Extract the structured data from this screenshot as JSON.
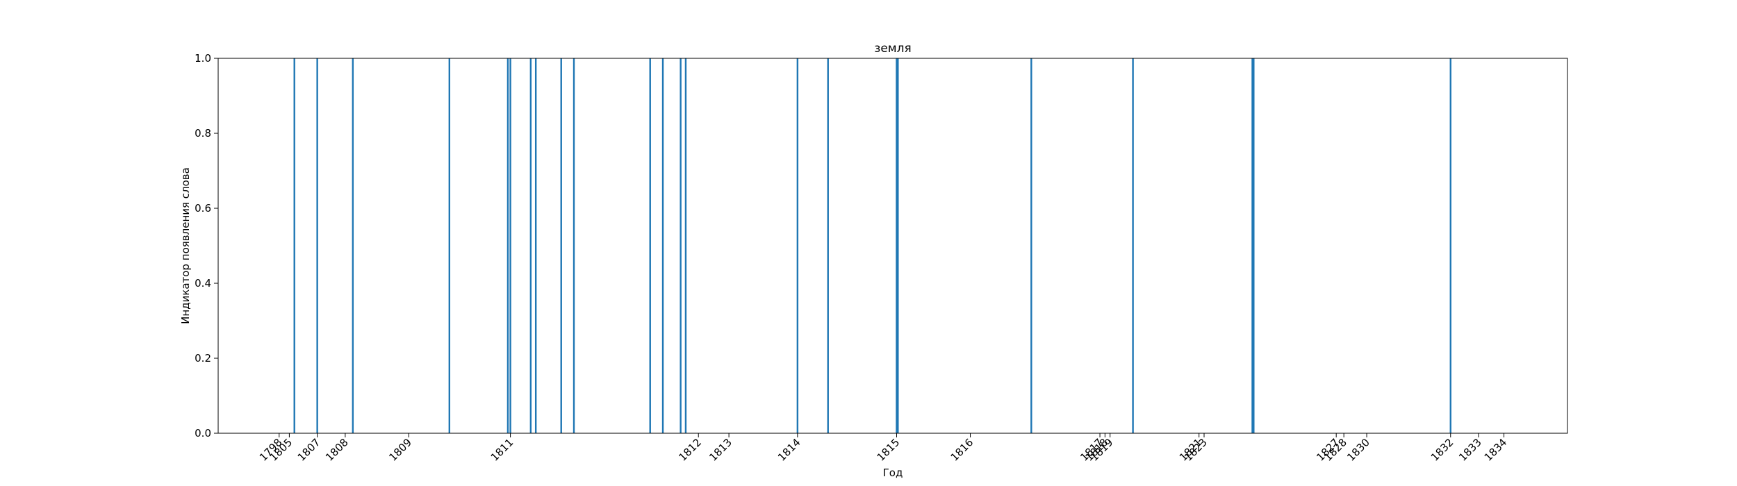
{
  "chart_data": {
    "type": "bar",
    "title": "земля",
    "xlabel": "Год",
    "ylabel": "Индикатор появления слова",
    "ylim": [
      0,
      1
    ],
    "xlim": [
      1787.5,
      1840.6
    ],
    "grid": false,
    "bar_color": "#1f77b4",
    "y_ticks": [
      {
        "value": 0.0,
        "label": "0.0"
      },
      {
        "value": 0.2,
        "label": "0.2"
      },
      {
        "value": 0.4,
        "label": "0.4"
      },
      {
        "value": 0.6,
        "label": "0.6"
      },
      {
        "value": 0.8,
        "label": "0.8"
      },
      {
        "value": 1.0,
        "label": "1.0"
      }
    ],
    "x_ticks": [
      {
        "value": 1789.9,
        "label": "1798"
      },
      {
        "value": 1790.3,
        "label": "1805"
      },
      {
        "value": 1791.4,
        "label": "1807"
      },
      {
        "value": 1792.5,
        "label": "1808"
      },
      {
        "value": 1795.0,
        "label": "1809"
      },
      {
        "value": 1799.0,
        "label": "1811"
      },
      {
        "value": 1806.4,
        "label": "1812"
      },
      {
        "value": 1807.6,
        "label": "1813"
      },
      {
        "value": 1810.3,
        "label": "1814"
      },
      {
        "value": 1814.2,
        "label": "1815"
      },
      {
        "value": 1817.1,
        "label": "1816"
      },
      {
        "value": 1822.2,
        "label": "1817"
      },
      {
        "value": 1822.4,
        "label": "1818"
      },
      {
        "value": 1822.6,
        "label": "1819"
      },
      {
        "value": 1826.1,
        "label": "1821"
      },
      {
        "value": 1826.3,
        "label": "1823"
      },
      {
        "value": 1831.5,
        "label": "1827"
      },
      {
        "value": 1831.8,
        "label": "1828"
      },
      {
        "value": 1832.7,
        "label": "1830"
      },
      {
        "value": 1836.0,
        "label": "1832"
      },
      {
        "value": 1837.1,
        "label": "1833"
      },
      {
        "value": 1838.1,
        "label": "1834"
      }
    ],
    "x": [
      1790.5,
      1791.4,
      1792.8,
      1796.6,
      1798.9,
      1799.0,
      1799.8,
      1800.0,
      1801.0,
      1801.5,
      1804.5,
      1805.0,
      1805.7,
      1805.9,
      1810.3,
      1811.5,
      1814.2,
      1814.25,
      1819.5,
      1823.5,
      1828.2,
      1828.25,
      1836.0
    ],
    "values": [
      1,
      1,
      1,
      1,
      1,
      1,
      1,
      1,
      1,
      1,
      1,
      1,
      1,
      1,
      1,
      1,
      1,
      1,
      1,
      1,
      1,
      1,
      1
    ]
  }
}
